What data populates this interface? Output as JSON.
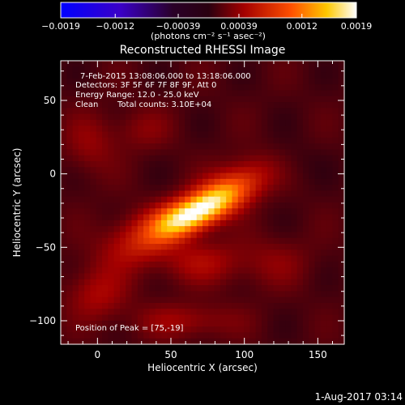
{
  "chart_data": {
    "type": "heatmap",
    "title": "Reconstructed RHESSI Image",
    "xlabel": "Heliocentric X (arcsec)",
    "ylabel": "Heliocentric Y (arcsec)",
    "xlim": [
      -25,
      168
    ],
    "ylim": [
      -116,
      77
    ],
    "x_ticks": [
      0,
      50,
      100,
      150
    ],
    "y_ticks": [
      50,
      0,
      -50,
      -100
    ],
    "colorbar": {
      "range": [
        -0.0019,
        0.0019
      ],
      "tick_values": [
        -0.0019,
        -0.0012,
        -0.00039,
        0.00039,
        0.0012,
        0.0019
      ],
      "tick_labels": [
        "−0.0019",
        "−0.0012",
        "−0.00039",
        "0.00039",
        "0.0012",
        "0.0019"
      ],
      "stops": [
        {
          "t": 0.0,
          "color": "#0000ff"
        },
        {
          "t": 0.2,
          "color": "#3a00c8"
        },
        {
          "t": 0.38,
          "color": "#2a0028"
        },
        {
          "t": 0.5,
          "color": "#2a0010"
        },
        {
          "t": 0.62,
          "color": "#a40000"
        },
        {
          "t": 0.78,
          "color": "#ff5000"
        },
        {
          "t": 0.9,
          "color": "#ffc800"
        },
        {
          "t": 1.0,
          "color": "#ffffff"
        }
      ]
    },
    "grid": false,
    "annotations": {
      "time": "7-Feb-2015 13:08:06.000 to 13:18:06.000",
      "detectors": "Detectors: 3F 5F 6F 7F 8F 9F, Att 0",
      "energy": "Energy Range: 12.0 - 25.0 keV",
      "clean": "Clean",
      "counts": "Total counts: 3.10E+04",
      "peak": "Position of Peak = [75,-19]"
    },
    "peak": {
      "x": 75,
      "y": -19,
      "value": 0.0019
    },
    "background_level": 0.00012,
    "components": [
      {
        "x": 70,
        "y": -25,
        "sx": 22,
        "sy": 8,
        "angle_deg": 28,
        "amp": 0.0015
      },
      {
        "x": 52,
        "y": -30,
        "sx": 14,
        "sy": 8,
        "angle_deg": 20,
        "amp": 0.0004
      },
      {
        "x": 92,
        "y": -8,
        "sx": 22,
        "sy": 10,
        "angle_deg": 28,
        "amp": 0.0005
      },
      {
        "x": 28,
        "y": -45,
        "sx": 20,
        "sy": 12,
        "angle_deg": 25,
        "amp": 0.00045
      },
      {
        "x": 70,
        "y": -60,
        "sx": 20,
        "sy": 10,
        "angle_deg": 0,
        "amp": 0.00035
      },
      {
        "x": 0,
        "y": -82,
        "sx": 14,
        "sy": 12,
        "angle_deg": 0,
        "amp": 0.00035
      },
      {
        "x": 60,
        "y": -100,
        "sx": 24,
        "sy": 8,
        "angle_deg": 0,
        "amp": 0.0003
      },
      {
        "x": -5,
        "y": 20,
        "sx": 12,
        "sy": 14,
        "angle_deg": 0,
        "amp": 0.00025
      },
      {
        "x": 120,
        "y": -60,
        "sx": 18,
        "sy": 12,
        "angle_deg": 0,
        "amp": 0.0002
      },
      {
        "x": 130,
        "y": 10,
        "sx": 14,
        "sy": 10,
        "angle_deg": 0,
        "amp": -0.0001
      },
      {
        "x": 30,
        "y": 30,
        "sx": 14,
        "sy": 10,
        "angle_deg": 0,
        "amp": 0.0002
      }
    ]
  },
  "footer": {
    "date": "1-Aug-2017 03:14"
  },
  "colorbar_unit": "(photons cm⁻² s⁻¹ asec⁻²)"
}
